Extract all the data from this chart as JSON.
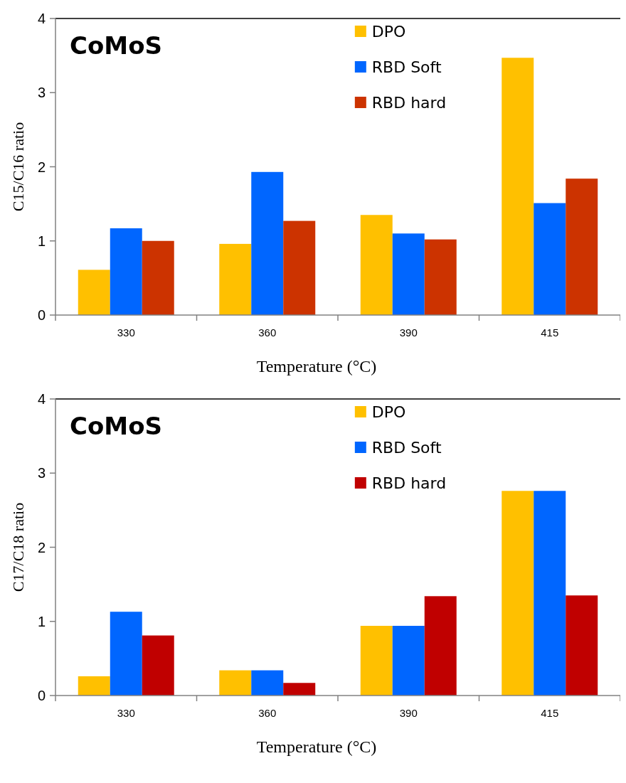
{
  "chart_data": [
    {
      "type": "bar",
      "title": "CoMoS",
      "xlabel": "Temperature (°C)",
      "ylabel": "C15/C16 ratio",
      "categories": [
        "330",
        "360",
        "390",
        "415"
      ],
      "ylim": [
        0,
        4
      ],
      "yticks": [
        0,
        1,
        2,
        3,
        4
      ],
      "grid": false,
      "legend": "top right",
      "series": [
        {
          "name": "DPO",
          "color": "#ffc000",
          "values": [
            0.61,
            0.96,
            1.35,
            3.47
          ]
        },
        {
          "name": "RBD Soft",
          "color": "#0066ff",
          "values": [
            1.17,
            1.93,
            1.1,
            1.51
          ]
        },
        {
          "name": "RBD hard",
          "color": "#cc3300",
          "values": [
            1.0,
            1.27,
            1.02,
            1.84
          ]
        }
      ]
    },
    {
      "type": "bar",
      "title": "CoMoS",
      "xlabel": "Temperature (°C)",
      "ylabel": "C17/C18 ratio",
      "categories": [
        "330",
        "360",
        "390",
        "415"
      ],
      "ylim": [
        0,
        4
      ],
      "yticks": [
        0,
        1,
        2,
        3,
        4
      ],
      "grid": false,
      "legend": "top right",
      "series": [
        {
          "name": "DPO",
          "color": "#ffc000",
          "values": [
            0.26,
            0.34,
            0.94,
            2.76
          ]
        },
        {
          "name": "RBD Soft",
          "color": "#0066ff",
          "values": [
            1.13,
            0.34,
            0.94,
            2.76
          ]
        },
        {
          "name": "RBD hard",
          "color": "#c00000",
          "values": [
            0.81,
            0.17,
            1.34,
            1.35
          ]
        }
      ]
    }
  ]
}
